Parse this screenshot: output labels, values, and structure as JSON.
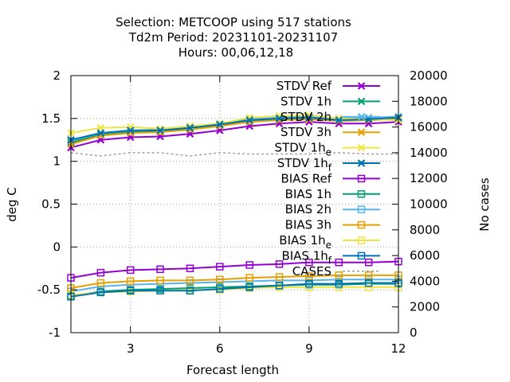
{
  "chart_data": {
    "type": "line",
    "title_lines": [
      "Selection: METCOOP using   517 stations",
      "Td2m   Period: 20231101-20231107",
      "Hours:  00,06,12,18"
    ],
    "xlabel": "Forecast length",
    "ylabel": "deg C",
    "y2label": "No cases",
    "xlim": [
      1,
      12
    ],
    "ylim": [
      -1,
      2
    ],
    "y2lim": [
      0,
      20000
    ],
    "x_ticks": [
      "3",
      "6",
      "9",
      "12"
    ],
    "y_ticks": [
      "2",
      "1.5",
      "1",
      "0.5",
      "0",
      "-0.5",
      "-1"
    ],
    "y2_ticks": [
      "20000",
      "18000",
      "16000",
      "14000",
      "12000",
      "10000",
      "8000",
      "6000",
      "4000",
      "2000",
      "0"
    ],
    "grid": true,
    "legend_position": "top-right",
    "x": [
      1,
      2,
      3,
      4,
      5,
      6,
      7,
      8,
      9,
      10,
      11,
      12
    ],
    "series": [
      {
        "name": "STDV Ref",
        "label_main": "STDV Ref",
        "label_sub": "",
        "color": "#9400d3",
        "marker": "x",
        "axis": "y1",
        "values": [
          1.16,
          1.25,
          1.28,
          1.29,
          1.32,
          1.36,
          1.41,
          1.44,
          1.46,
          1.44,
          1.44,
          1.46
        ]
      },
      {
        "name": "STDV 1h",
        "label_main": "STDV 1h",
        "label_sub": "",
        "color": "#009e73",
        "marker": "x",
        "axis": "y1",
        "values": [
          1.22,
          1.31,
          1.34,
          1.35,
          1.38,
          1.42,
          1.47,
          1.49,
          1.5,
          1.48,
          1.49,
          1.5
        ]
      },
      {
        "name": "STDV 2h",
        "label_main": "STDV 2h",
        "label_sub": "",
        "color": "#56b4e9",
        "marker": "x",
        "axis": "y1",
        "values": [
          1.24,
          1.33,
          1.36,
          1.37,
          1.4,
          1.44,
          1.49,
          1.51,
          1.52,
          1.5,
          1.51,
          1.52
        ]
      },
      {
        "name": "STDV 3h",
        "label_main": "STDV 3h",
        "label_sub": "",
        "color": "#e69f00",
        "marker": "x",
        "axis": "y1",
        "values": [
          1.2,
          1.3,
          1.33,
          1.34,
          1.37,
          1.41,
          1.46,
          1.48,
          1.49,
          1.47,
          1.48,
          1.49
        ]
      },
      {
        "name": "STDV 1h_e",
        "label_main": "STDV 1h",
        "label_sub": "e",
        "color": "#f0e442",
        "marker": "x",
        "axis": "y1",
        "values": [
          1.33,
          1.39,
          1.4,
          1.38,
          1.41,
          1.44,
          1.51,
          1.53,
          1.54,
          1.5,
          1.49,
          1.48
        ]
      },
      {
        "name": "STDV 1h_f",
        "label_main": "STDV 1h",
        "label_sub": "f",
        "color": "#0072b2",
        "marker": "x",
        "axis": "y1",
        "values": [
          1.25,
          1.33,
          1.36,
          1.36,
          1.39,
          1.43,
          1.48,
          1.5,
          1.51,
          1.48,
          1.49,
          1.51
        ]
      },
      {
        "name": "BIAS Ref",
        "label_main": "BIAS Ref",
        "label_sub": "",
        "color": "#9400d3",
        "marker": "square",
        "axis": "y1",
        "values": [
          -0.36,
          -0.3,
          -0.27,
          -0.26,
          -0.25,
          -0.23,
          -0.21,
          -0.2,
          -0.18,
          -0.18,
          -0.18,
          -0.17
        ]
      },
      {
        "name": "BIAS 1h",
        "label_main": "BIAS 1h",
        "label_sub": "",
        "color": "#009e73",
        "marker": "square",
        "axis": "y1",
        "values": [
          -0.57,
          -0.52,
          -0.5,
          -0.49,
          -0.48,
          -0.47,
          -0.46,
          -0.45,
          -0.44,
          -0.44,
          -0.43,
          -0.43
        ]
      },
      {
        "name": "BIAS 2h",
        "label_main": "BIAS 2h",
        "label_sub": "",
        "color": "#56b4e9",
        "marker": "square",
        "axis": "y1",
        "values": [
          -0.52,
          -0.46,
          -0.44,
          -0.43,
          -0.42,
          -0.41,
          -0.4,
          -0.39,
          -0.39,
          -0.38,
          -0.38,
          -0.38
        ]
      },
      {
        "name": "BIAS 3h",
        "label_main": "BIAS 3h",
        "label_sub": "",
        "color": "#e69f00",
        "marker": "square",
        "axis": "y1",
        "values": [
          -0.48,
          -0.42,
          -0.4,
          -0.39,
          -0.39,
          -0.38,
          -0.36,
          -0.35,
          -0.34,
          -0.33,
          -0.33,
          -0.33
        ]
      },
      {
        "name": "BIAS 1h_e",
        "label_main": "BIAS 1h",
        "label_sub": "e",
        "color": "#f0e442",
        "marker": "square",
        "axis": "y1",
        "values": [
          -0.56,
          -0.53,
          -0.52,
          -0.51,
          -0.5,
          -0.5,
          -0.48,
          -0.47,
          -0.47,
          -0.47,
          -0.47,
          -0.47
        ]
      },
      {
        "name": "BIAS 1h_f",
        "label_main": "BIAS 1h",
        "label_sub": "f",
        "color": "#0072b2",
        "marker": "square",
        "axis": "y1",
        "values": [
          -0.58,
          -0.53,
          -0.51,
          -0.51,
          -0.51,
          -0.49,
          -0.47,
          -0.45,
          -0.43,
          -0.43,
          -0.42,
          -0.42
        ]
      },
      {
        "name": "CASES",
        "label_main": "CASES",
        "label_sub": "",
        "color": "#a0a0a0",
        "marker": "none",
        "dashed": true,
        "axis": "y2",
        "values": [
          14000,
          13750,
          14000,
          14000,
          13750,
          14000,
          13900,
          13900,
          13900,
          14000,
          13900,
          13900
        ]
      }
    ]
  }
}
